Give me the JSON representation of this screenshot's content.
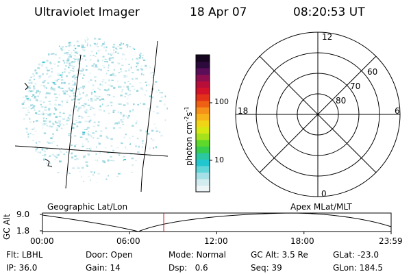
{
  "header": {
    "instrument": "Ultraviolet Imager",
    "date": "18 Apr 07",
    "time": "08:20:53 UT"
  },
  "colorbar": {
    "label": "photon cm",
    "label_exp1": "-2",
    "label_mid": "s",
    "label_exp2": "-1",
    "ticks": [
      "100",
      "10"
    ],
    "colors": [
      "#eef5f7",
      "#d2ecf0",
      "#a4e0e6",
      "#5fd5d8",
      "#22c6cf",
      "#2bc7a0",
      "#36cc4e",
      "#5ed82a",
      "#a6e21c",
      "#d6e813",
      "#f0d516",
      "#f7b41a",
      "#f59018",
      "#ee6014",
      "#e3321a",
      "#d3132a",
      "#b80e3a",
      "#8d0f4f",
      "#5a0e57",
      "#2c0a3c",
      "#15051e"
    ]
  },
  "polar": {
    "mlt_labels": {
      "top": "12",
      "bottom": "0",
      "left": "18",
      "right": "6"
    },
    "lat_labels": [
      "60",
      "70",
      "80"
    ]
  },
  "timeline": {
    "ylabel": "GC Alt",
    "y_ticks": [
      "9.0",
      "1.8"
    ],
    "left_title": "Geographic Lat/Lon",
    "right_title": "Apex MLat/MLT",
    "x_ticks": [
      "00:00",
      "06:00",
      "12:00",
      "18:00",
      "23:59"
    ],
    "current_time_fraction": 0.3478
  },
  "info": {
    "row1": [
      {
        "label": "Flt:",
        "value": "LBHL"
      },
      {
        "label": "Door:",
        "value": "Open"
      },
      {
        "label": "Mode:",
        "value": "Normal"
      },
      {
        "label": "GC Alt:",
        "value": "3.5 Re"
      },
      {
        "label": "GLat:",
        "value": "-23.0"
      }
    ],
    "row2": [
      {
        "label": "IP:",
        "value": "36.0"
      },
      {
        "label": "Gain:",
        "value": "14"
      },
      {
        "label": "Dsp:",
        "value": "0.6"
      },
      {
        "label": "Seq:",
        "value": "39"
      },
      {
        "label": "GLon:",
        "value": "184.5"
      }
    ]
  }
}
